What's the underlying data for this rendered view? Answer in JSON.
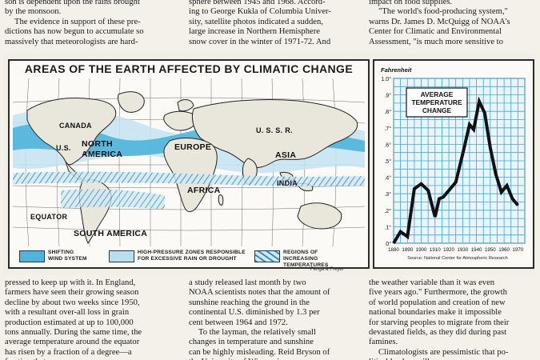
{
  "columns_top": [
    {
      "lines": [
        "son is dependent upon the rains brought",
        "by the monsoon.",
        "The evidence in support of these pre-",
        "dictions has now begun to accumulate so",
        "massively that meteorologists are hard-"
      ]
    },
    {
      "lines": [
        "sphere between 1945 and 1968. Accord-",
        "ing to George Kukla of Columbia Univer-",
        "sity, satellite photos indicated a sudden,",
        "large increase in Northern Hemisphere",
        "snow cover in the winter of 1971-72. And"
      ]
    },
    {
      "lines": [
        "impact on food supplies.",
        "\"The world's food-producing system,\"",
        "warns Dr. James D. McQuigg of NOAA's",
        "Center for Climatic and Environmental",
        "Assessment, \"is much more sensitive to"
      ]
    }
  ],
  "columns_bottom": [
    {
      "lines": [
        "pressed to keep up with it. In England,",
        "farmers have seen their growing season",
        "decline by about two weeks since 1950,",
        "with a resultant over-all loss in grain",
        "production estimated at up to 100,000",
        "tons annually. During the same time, the",
        "average temperature around the equator",
        "has risen by a fraction of a degree—a",
        "fraction that ..."
      ]
    },
    {
      "lines": [
        "a study released last month by two",
        "NOAA scientists notes that the amount of",
        "sunshine reaching the ground in the",
        "continental U.S. diminished by 1.3 per",
        "cent between 1964 and 1972.",
        "To the layman, the relatively small",
        "changes in temperature and sunshine",
        "can be highly misleading. Reid Bryson of",
        "the University of Wisconsin ..."
      ]
    },
    {
      "lines": [
        "the weather variable than it was even",
        "five years ago.\" Furthermore, the growth",
        "of world population and creation of new",
        "national boundaries make it impossible",
        "for starving peoples to migrate from their",
        "devastated fields, as they did during past",
        "famines.",
        "Climatologists are pessimistic that po-",
        "litical leaders will ..."
      ]
    }
  ],
  "map": {
    "title": "AREAS OF THE EARTH AFFECTED BY CLIMATIC CHANGE",
    "labels": {
      "canada": "CANADA",
      "us": "U.S.",
      "north_america": "NORTH\nAMERICA",
      "europe": "EUROPE",
      "ussr": "U. S. S. R.",
      "asia": "ASIA",
      "india": "INDIA",
      "africa": "AFRICA",
      "equator": "EQUATOR",
      "south_america": "SOUTH  AMERICA"
    },
    "legend": [
      {
        "label": "SHIFTING\nWIND SYSTEM",
        "color": "#4fb4dc",
        "pattern": "solid"
      },
      {
        "label": "HIGH-PRESSURE ZONES RESPONSIBLE\nFOR EXCESSIVE RAIN OR DROUGHT",
        "color": "#b9dff0",
        "pattern": "solid"
      },
      {
        "label": "REGIONS OF\nINCREASING TEMPERATURES",
        "color": "#8fc5e2",
        "pattern": "hatched"
      }
    ]
  },
  "chart_data": {
    "type": "line",
    "title": "AVERAGE\nTEMPERATURE\nCHANGE",
    "ylabel": "Fahrenheit",
    "x": [
      1880,
      1885,
      1890,
      1895,
      1900,
      1905,
      1910,
      1913,
      1916,
      1920,
      1925,
      1930,
      1935,
      1938,
      1942,
      1946,
      1950,
      1954,
      1958,
      1962,
      1966,
      1970
    ],
    "values": [
      0.0,
      0.07,
      0.04,
      0.33,
      0.36,
      0.32,
      0.16,
      0.27,
      0.28,
      0.32,
      0.37,
      0.54,
      0.72,
      0.69,
      0.86,
      0.79,
      0.58,
      0.42,
      0.31,
      0.35,
      0.27,
      0.23
    ],
    "xticks": [
      "1880",
      "1890",
      "1900",
      "1910",
      "1920",
      "1930",
      "1940",
      "1950",
      "1960",
      "1970"
    ],
    "yticks": [
      "0°",
      ".1°",
      ".2°",
      ".3°",
      ".4°",
      ".5°",
      ".6°",
      ".7°",
      ".8°",
      ".9°",
      "1.0°"
    ],
    "ylim": [
      0,
      1.0
    ],
    "xlim": [
      1880,
      1975
    ],
    "source": "Source: National Center for Atmospheric Research",
    "grid": true,
    "color_line": "#111111",
    "color_grid": "#3aa6d8"
  },
  "credit": "Fenga & Freyer"
}
